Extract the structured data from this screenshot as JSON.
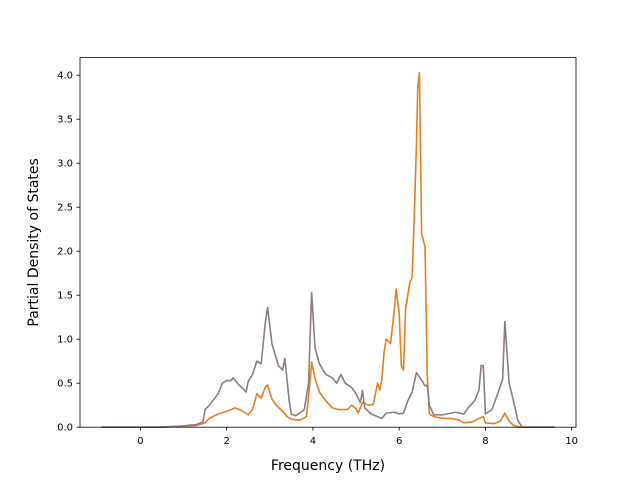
{
  "chart_data": {
    "type": "line",
    "title": "",
    "xlabel": "Frequency (THz)",
    "ylabel": "Partial Density of States",
    "xlim": [
      -1.4,
      10.1
    ],
    "ylim": [
      0.0,
      4.2
    ],
    "x_ticks": [
      0,
      2,
      4,
      6,
      8,
      10
    ],
    "x_tick_labels": [
      "0",
      "2",
      "4",
      "6",
      "8",
      "10"
    ],
    "y_ticks": [
      0.0,
      0.5,
      1.0,
      1.5,
      2.0,
      2.5,
      3.0,
      3.5,
      4.0
    ],
    "y_tick_labels": [
      "0.0",
      "0.5",
      "1.0",
      "1.5",
      "2.0",
      "2.5",
      "3.0",
      "3.5",
      "4.0"
    ],
    "grid": false,
    "series": [
      {
        "color": "#e67e22",
        "points": [
          [
            -0.9,
            0.0
          ],
          [
            0.4,
            0.0
          ],
          [
            0.9,
            0.01
          ],
          [
            1.3,
            0.02
          ],
          [
            1.5,
            0.05
          ],
          [
            1.6,
            0.1
          ],
          [
            1.8,
            0.15
          ],
          [
            2.0,
            0.18
          ],
          [
            2.2,
            0.22
          ],
          [
            2.35,
            0.19
          ],
          [
            2.5,
            0.14
          ],
          [
            2.6,
            0.2
          ],
          [
            2.7,
            0.38
          ],
          [
            2.8,
            0.33
          ],
          [
            2.9,
            0.46
          ],
          [
            2.95,
            0.48
          ],
          [
            3.05,
            0.32
          ],
          [
            3.15,
            0.25
          ],
          [
            3.3,
            0.18
          ],
          [
            3.4,
            0.12
          ],
          [
            3.5,
            0.09
          ],
          [
            3.7,
            0.08
          ],
          [
            3.85,
            0.12
          ],
          [
            3.92,
            0.45
          ],
          [
            3.97,
            0.74
          ],
          [
            4.05,
            0.55
          ],
          [
            4.15,
            0.4
          ],
          [
            4.3,
            0.3
          ],
          [
            4.45,
            0.22
          ],
          [
            4.6,
            0.2
          ],
          [
            4.8,
            0.2
          ],
          [
            4.9,
            0.25
          ],
          [
            5.0,
            0.21
          ],
          [
            5.05,
            0.16
          ],
          [
            5.15,
            0.28
          ],
          [
            5.3,
            0.25
          ],
          [
            5.4,
            0.26
          ],
          [
            5.5,
            0.5
          ],
          [
            5.55,
            0.42
          ],
          [
            5.6,
            0.55
          ],
          [
            5.65,
            0.85
          ],
          [
            5.7,
            1.0
          ],
          [
            5.8,
            0.95
          ],
          [
            5.88,
            1.3
          ],
          [
            5.93,
            1.57
          ],
          [
            6.0,
            1.3
          ],
          [
            6.05,
            0.7
          ],
          [
            6.1,
            0.65
          ],
          [
            6.15,
            1.35
          ],
          [
            6.25,
            1.65
          ],
          [
            6.3,
            1.7
          ],
          [
            6.35,
            2.4
          ],
          [
            6.4,
            3.2
          ],
          [
            6.43,
            3.85
          ],
          [
            6.47,
            4.03
          ],
          [
            6.52,
            2.2
          ],
          [
            6.6,
            2.05
          ],
          [
            6.65,
            0.6
          ],
          [
            6.7,
            0.15
          ],
          [
            6.8,
            0.12
          ],
          [
            7.0,
            0.1
          ],
          [
            7.2,
            0.1
          ],
          [
            7.4,
            0.08
          ],
          [
            7.5,
            0.05
          ],
          [
            7.7,
            0.06
          ],
          [
            7.85,
            0.1
          ],
          [
            7.95,
            0.12
          ],
          [
            8.0,
            0.05
          ],
          [
            8.2,
            0.04
          ],
          [
            8.35,
            0.07
          ],
          [
            8.45,
            0.16
          ],
          [
            8.55,
            0.07
          ],
          [
            8.65,
            0.02
          ],
          [
            8.8,
            0.0
          ],
          [
            9.6,
            0.0
          ]
        ]
      },
      {
        "color": "#8c7b80",
        "points": [
          [
            -0.9,
            0.0
          ],
          [
            0.4,
            0.0
          ],
          [
            0.9,
            0.01
          ],
          [
            1.3,
            0.03
          ],
          [
            1.45,
            0.06
          ],
          [
            1.5,
            0.2
          ],
          [
            1.6,
            0.25
          ],
          [
            1.8,
            0.38
          ],
          [
            1.9,
            0.5
          ],
          [
            2.0,
            0.53
          ],
          [
            2.1,
            0.53
          ],
          [
            2.15,
            0.56
          ],
          [
            2.25,
            0.5
          ],
          [
            2.35,
            0.45
          ],
          [
            2.45,
            0.4
          ],
          [
            2.5,
            0.52
          ],
          [
            2.6,
            0.6
          ],
          [
            2.7,
            0.75
          ],
          [
            2.8,
            0.72
          ],
          [
            2.9,
            1.2
          ],
          [
            2.95,
            1.36
          ],
          [
            3.05,
            0.95
          ],
          [
            3.2,
            0.7
          ],
          [
            3.3,
            0.65
          ],
          [
            3.35,
            0.78
          ],
          [
            3.45,
            0.3
          ],
          [
            3.5,
            0.15
          ],
          [
            3.6,
            0.13
          ],
          [
            3.8,
            0.2
          ],
          [
            3.9,
            0.5
          ],
          [
            3.97,
            1.53
          ],
          [
            4.05,
            0.9
          ],
          [
            4.15,
            0.72
          ],
          [
            4.3,
            0.6
          ],
          [
            4.45,
            0.56
          ],
          [
            4.55,
            0.5
          ],
          [
            4.65,
            0.6
          ],
          [
            4.75,
            0.5
          ],
          [
            4.9,
            0.45
          ],
          [
            5.0,
            0.38
          ],
          [
            5.1,
            0.28
          ],
          [
            5.15,
            0.42
          ],
          [
            5.2,
            0.22
          ],
          [
            5.35,
            0.15
          ],
          [
            5.45,
            0.13
          ],
          [
            5.6,
            0.1
          ],
          [
            5.7,
            0.16
          ],
          [
            5.9,
            0.17
          ],
          [
            6.0,
            0.15
          ],
          [
            6.1,
            0.16
          ],
          [
            6.2,
            0.3
          ],
          [
            6.3,
            0.4
          ],
          [
            6.4,
            0.62
          ],
          [
            6.5,
            0.55
          ],
          [
            6.6,
            0.47
          ],
          [
            6.65,
            0.48
          ],
          [
            6.7,
            0.25
          ],
          [
            6.8,
            0.14
          ],
          [
            7.0,
            0.14
          ],
          [
            7.3,
            0.17
          ],
          [
            7.5,
            0.15
          ],
          [
            7.6,
            0.22
          ],
          [
            7.75,
            0.3
          ],
          [
            7.85,
            0.42
          ],
          [
            7.9,
            0.7
          ],
          [
            7.95,
            0.7
          ],
          [
            8.0,
            0.15
          ],
          [
            8.15,
            0.2
          ],
          [
            8.3,
            0.4
          ],
          [
            8.4,
            0.55
          ],
          [
            8.45,
            1.2
          ],
          [
            8.55,
            0.5
          ],
          [
            8.65,
            0.3
          ],
          [
            8.75,
            0.08
          ],
          [
            8.85,
            0.0
          ],
          [
            9.6,
            0.0
          ]
        ]
      }
    ]
  }
}
